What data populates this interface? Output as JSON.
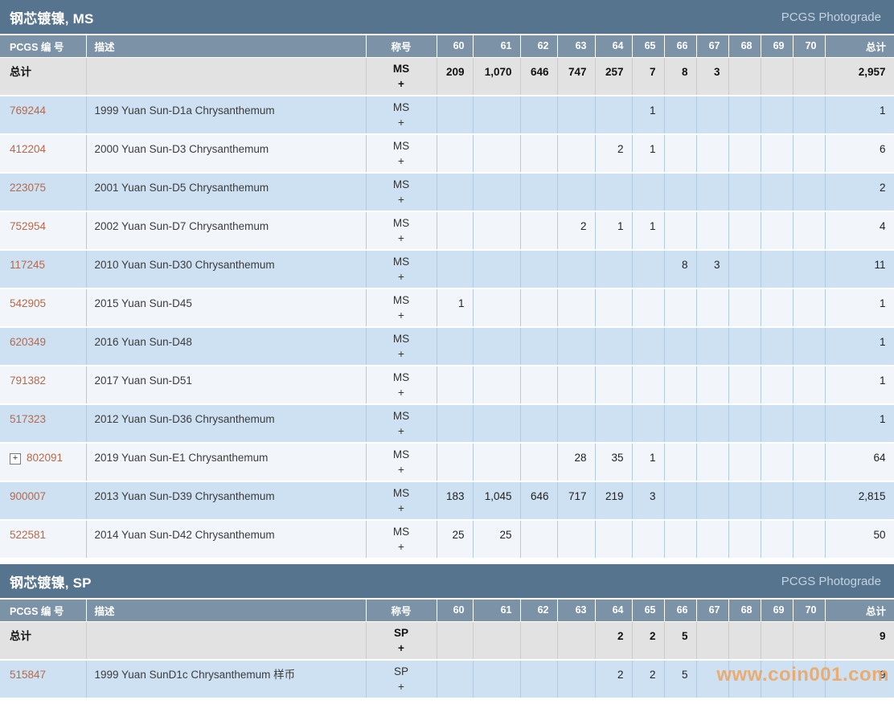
{
  "photograde_label": "PCGS Photograde",
  "totals_label": "总计",
  "designation_plus": "+",
  "icons": {
    "expand_glyph": "+"
  },
  "watermark": {
    "text": "www.coin001.com"
  },
  "colors": {
    "section_bar": "#57748e",
    "column_header": "#7c93a7",
    "row_blue": "#cde1f2",
    "row_light": "#f2f6fa",
    "totals_row": "#e2e2e2",
    "cell_border": "#b3cadf",
    "id_link": "#b5694a",
    "photograde_text": "#c3d4e0",
    "watermark_text": "#f1a35c"
  },
  "columns": {
    "id_label": "PCGS 编 号",
    "desc_label": "描述",
    "designation_label": "称号",
    "grades": [
      "60",
      "61",
      "62",
      "63",
      "64",
      "65",
      "66",
      "67",
      "68",
      "69",
      "70"
    ],
    "total_label": "总计"
  },
  "sections": [
    {
      "title": "钢芯镀镍, MS",
      "designation": "MS",
      "totals": {
        "60": "209",
        "61": "1,070",
        "62": "646",
        "63": "747",
        "64": "257",
        "65": "7",
        "66": "8",
        "67": "3",
        "total": "2,957"
      },
      "rows": [
        {
          "id": "769244",
          "expand": false,
          "desc": "1999 Yuan Sun-D1a Chrysanthemum",
          "grades": {
            "65": "1"
          },
          "total": "1"
        },
        {
          "id": "412204",
          "expand": false,
          "desc": "2000 Yuan Sun-D3 Chrysanthemum",
          "grades": {
            "64": "2",
            "65": "1"
          },
          "total": "6"
        },
        {
          "id": "223075",
          "expand": false,
          "desc": "2001 Yuan Sun-D5 Chrysanthemum",
          "grades": {},
          "total": "2"
        },
        {
          "id": "752954",
          "expand": false,
          "desc": "2002 Yuan Sun-D7 Chrysanthemum",
          "grades": {
            "63": "2",
            "64": "1",
            "65": "1"
          },
          "total": "4"
        },
        {
          "id": "117245",
          "expand": false,
          "desc": "2010 Yuan Sun-D30 Chrysanthemum",
          "grades": {
            "66": "8",
            "67": "3"
          },
          "total": "11"
        },
        {
          "id": "542905",
          "expand": false,
          "desc": "2015 Yuan Sun-D45",
          "grades": {
            "60": "1"
          },
          "total": "1"
        },
        {
          "id": "620349",
          "expand": false,
          "desc": "2016 Yuan Sun-D48",
          "grades": {},
          "total": "1"
        },
        {
          "id": "791382",
          "expand": false,
          "desc": "2017 Yuan Sun-D51",
          "grades": {},
          "total": "1"
        },
        {
          "id": "517323",
          "expand": false,
          "desc": "2012 Yuan Sun-D36 Chrysanthemum",
          "grades": {},
          "total": "1"
        },
        {
          "id": "802091",
          "expand": true,
          "desc": "2019 Yuan Sun-E1 Chrysanthemum",
          "grades": {
            "63": "28",
            "64": "35",
            "65": "1"
          },
          "total": "64"
        },
        {
          "id": "900007",
          "expand": false,
          "desc": "2013 Yuan Sun-D39 Chrysanthemum",
          "grades": {
            "60": "183",
            "61": "1,045",
            "62": "646",
            "63": "717",
            "64": "219",
            "65": "3"
          },
          "total": "2,815"
        },
        {
          "id": "522581",
          "expand": false,
          "desc": "2014 Yuan Sun-D42 Chrysanthemum",
          "grades": {
            "60": "25",
            "61": "25"
          },
          "total": "50"
        }
      ]
    },
    {
      "title": "钢芯镀镍, SP",
      "designation": "SP",
      "totals": {
        "64": "2",
        "65": "2",
        "66": "5",
        "total": "9"
      },
      "rows": [
        {
          "id": "515847",
          "expand": false,
          "desc": "1999 Yuan SunD1c Chrysanthemum 样币",
          "grades": {
            "64": "2",
            "65": "2",
            "66": "5"
          },
          "total": "9"
        }
      ]
    }
  ]
}
